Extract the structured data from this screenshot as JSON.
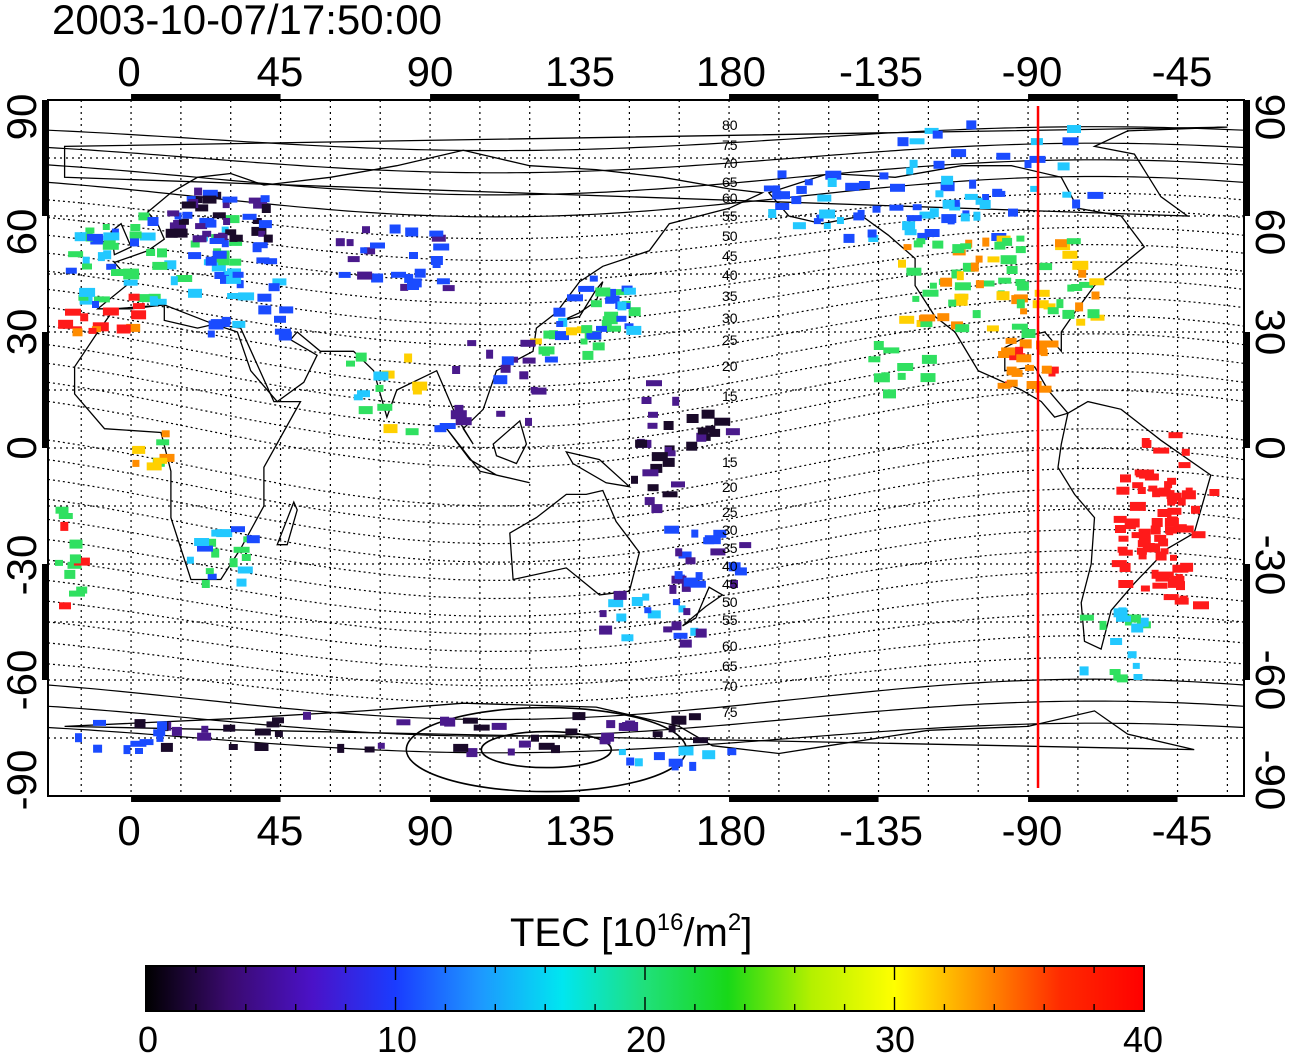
{
  "timestamp": "2003-10-07/17:50:00",
  "top_ticks": [
    "0",
    "45",
    "90",
    "135",
    "180",
    "-135",
    "-90",
    "-45"
  ],
  "bottom_ticks": [
    "0",
    "45",
    "90",
    "135",
    "180",
    "-135",
    "-90",
    "-45"
  ],
  "left_ticks": [
    "90",
    "60",
    "30",
    "0",
    "-30",
    "-60",
    "-90"
  ],
  "right_ticks": [
    "90",
    "60",
    "30",
    "0",
    "-30",
    "-60",
    "-90"
  ],
  "contour_labels_north": [
    "80",
    "75",
    "70",
    "65",
    "60",
    "55",
    "50",
    "45",
    "40",
    "35",
    "30",
    "25",
    "20",
    "15"
  ],
  "contour_labels_south": [
    "15",
    "20",
    "25",
    "30",
    "35",
    "40",
    "45",
    "50",
    "55",
    "60",
    "65",
    "70",
    "75"
  ],
  "colorbar": {
    "title_prefix": "TEC  [10",
    "title_sup1": "16",
    "title_mid": "/m",
    "title_sup2": "2",
    "title_suffix": "]",
    "tick_labels": [
      "0",
      "10",
      "20",
      "30",
      "40"
    ],
    "range": [
      0,
      40
    ],
    "colors": [
      "#000000",
      "#3a0a6e",
      "#4b12c8",
      "#1a3cff",
      "#1e96ff",
      "#00e6f0",
      "#20e07a",
      "#18d818",
      "#b4f000",
      "#ffff00",
      "#ff9600",
      "#ff2a00",
      "#ff0000"
    ]
  },
  "map": {
    "lon_range_left_to_right": [
      -25,
      335
    ],
    "lat_range": [
      -90,
      90
    ],
    "meridian_marker": {
      "lon": -87,
      "color": "#ff0000"
    },
    "colors": {
      "purple": "#4a1a8c",
      "dark": "#1a0a2a",
      "blue": "#1a4bff",
      "cyan": "#22c8ff",
      "green": "#30e060",
      "yellow": "#ffd000",
      "orange": "#ff8c00",
      "red": "#ff1a1a"
    }
  }
}
